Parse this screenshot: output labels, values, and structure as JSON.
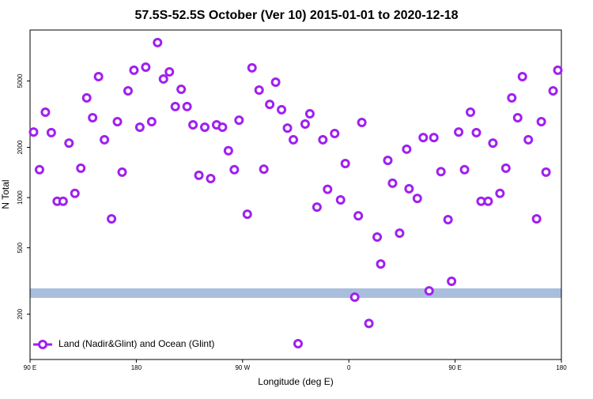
{
  "chart_data": {
    "type": "scatter",
    "title": "57.5S-52.5S October (Ver 10)   2015-01-01 to 2020-12-18",
    "x_label": "Longitude (deg E)",
    "y_label": "N Total",
    "log_y": true,
    "legend": "lower left",
    "xlim": [
      90,
      540
    ],
    "ylim": [
      107,
      10100
    ],
    "xticks": [
      {
        "value": 90,
        "label": "90 E"
      },
      {
        "value": 180,
        "label": "180"
      },
      {
        "value": 270,
        "label": "90 W"
      },
      {
        "value": 360,
        "label": "0"
      },
      {
        "value": 450,
        "label": "90 E"
      },
      {
        "value": 540,
        "label": "180"
      }
    ],
    "yticks": [
      200,
      500,
      1000,
      2000,
      5000
    ],
    "series": [
      {
        "name": "Land (Nadir&Glint) and Ocean (Glint)",
        "color": "#a020f0",
        "x": [
          93,
          98,
          103,
          108,
          113,
          118,
          123,
          128,
          133,
          138,
          143,
          148,
          153,
          159,
          164,
          168,
          173,
          178,
          183,
          188,
          193,
          198,
          203,
          208,
          213,
          218,
          223,
          228,
          233,
          238,
          243,
          248,
          253,
          258,
          263,
          267,
          274,
          278,
          284,
          288,
          293,
          298,
          303,
          308,
          313,
          317,
          323,
          327,
          333,
          338,
          342,
          348,
          353,
          357,
          365,
          368,
          371,
          377,
          384,
          387,
          393,
          397,
          403,
          409,
          411,
          418,
          423,
          428,
          432,
          438,
          444,
          447,
          453,
          458,
          463,
          468,
          472,
          478,
          482,
          488,
          493,
          498,
          503,
          507,
          512,
          519,
          523,
          527,
          533,
          537
        ],
        "values": [
          2470,
          1470,
          3250,
          2450,
          950,
          950,
          2120,
          1060,
          1500,
          3960,
          3010,
          5310,
          2220,
          745,
          2850,
          1420,
          4360,
          5800,
          2640,
          6050,
          2850,
          8490,
          5140,
          5670,
          3510,
          4460,
          3510,
          2730,
          1360,
          2640,
          1300,
          2730,
          2640,
          1910,
          1470,
          2910,
          795,
          5990,
          4410,
          1480,
          3620,
          4920,
          3360,
          2610,
          2220,
          133,
          2760,
          3180,
          877,
          2220,
          1120,
          2420,
          968,
          1600,
          253,
          778,
          2820,
          176,
          580,
          400,
          1670,
          1220,
          612,
          1950,
          1130,
          989,
          2290,
          276,
          2290,
          1430,
          737,
          315,
          2470,
          1470,
          3250,
          2450,
          950,
          950,
          2120,
          1060,
          1500,
          3960,
          3010,
          5310,
          2220,
          745,
          2850,
          1420,
          4360,
          5800
        ]
      }
    ]
  }
}
